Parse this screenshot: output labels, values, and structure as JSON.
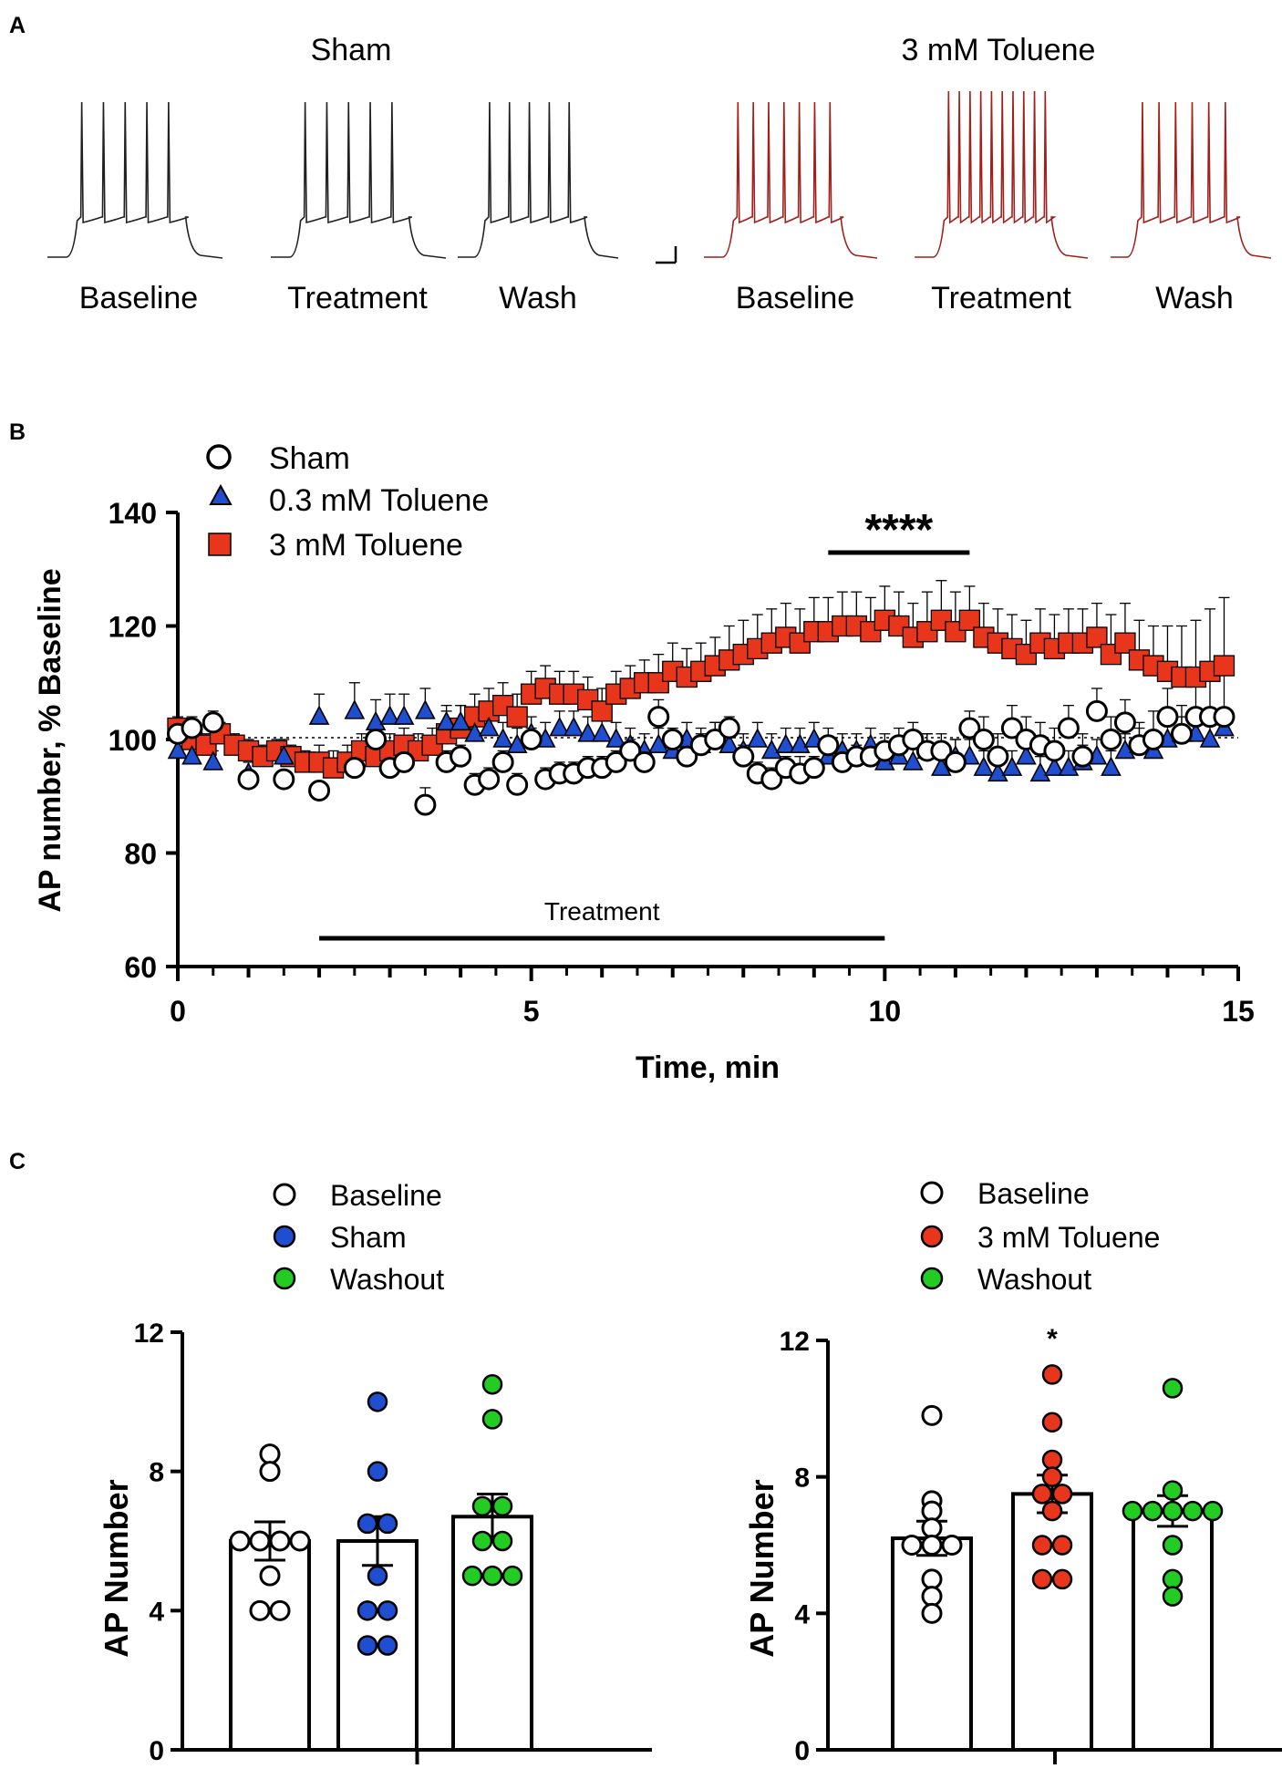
{
  "figure": {
    "panel_labels": [
      "A",
      "B",
      "C"
    ]
  },
  "colors": {
    "sham_trace": "#202020",
    "toluene_trace": "#a0201c",
    "red_marker": "#e8361c",
    "blue_marker": "#1f4fd0",
    "green_marker": "#22cc22",
    "white_marker": "#ffffff"
  },
  "panel_a": {
    "groups": [
      {
        "title": "Sham",
        "traces": [
          "Baseline",
          "Treatment",
          "Wash"
        ],
        "spikes": [
          5,
          5,
          5
        ]
      },
      {
        "title": "3 mM Toluene",
        "traces": [
          "Baseline",
          "Treatment",
          "Wash"
        ],
        "spikes": [
          7,
          10,
          6
        ]
      }
    ]
  },
  "chart_data": [
    {
      "id": "panel_b",
      "type": "scatter",
      "title": "",
      "xlabel": "Time, min",
      "ylabel": "AP number, % Baseline",
      "xlim": [
        0,
        15
      ],
      "ylim": [
        60,
        140
      ],
      "xticks": [
        0,
        5,
        10,
        15
      ],
      "yticks": [
        60,
        80,
        100,
        120,
        140
      ],
      "legend": [
        "Sham",
        "0.3 mM Toluene",
        "3 mM Toluene"
      ],
      "legend_position": "top-left",
      "significance": {
        "label": "****",
        "x_range": [
          9.2,
          11.2
        ]
      },
      "treatment_bar": {
        "label": "Treatment",
        "x_range": [
          2,
          10
        ]
      },
      "reference_line_y": 100,
      "series": [
        {
          "name": "Sham",
          "marker": "circle",
          "x": [
            0,
            0.2,
            0.5,
            1.0,
            1.5,
            2.0,
            2.5,
            2.8,
            3.0,
            3.2,
            3.5,
            3.8,
            4.0,
            4.2,
            4.4,
            4.6,
            4.8,
            5.0,
            5.2,
            5.4,
            5.6,
            5.8,
            6.0,
            6.2,
            6.4,
            6.6,
            6.8,
            7.0,
            7.2,
            7.4,
            7.6,
            7.8,
            8.0,
            8.2,
            8.4,
            8.6,
            8.8,
            9.0,
            9.2,
            9.4,
            9.6,
            9.8,
            10.0,
            10.2,
            10.4,
            10.6,
            10.8,
            11.0,
            11.2,
            11.4,
            11.6,
            11.8,
            12.0,
            12.2,
            12.4,
            12.6,
            12.8,
            13.0,
            13.2,
            13.4,
            13.6,
            13.8,
            14.0,
            14.2,
            14.4,
            14.6,
            14.8
          ],
          "y": [
            101,
            102,
            103,
            93,
            93,
            91,
            95,
            100,
            95,
            96,
            88.5,
            96,
            97,
            92,
            93,
            96,
            92,
            100,
            93,
            94,
            94,
            95,
            95,
            96,
            98,
            96,
            104,
            100,
            97,
            99,
            100,
            102,
            97,
            94,
            93,
            95,
            94,
            95,
            99,
            96,
            97,
            97,
            98,
            99,
            100,
            98,
            98,
            96,
            102,
            100,
            97,
            102,
            100,
            99,
            98,
            102,
            97,
            105,
            100,
            103,
            99,
            100,
            104,
            101,
            104,
            104,
            104
          ],
          "err": [
            1,
            2,
            2,
            1,
            1,
            1,
            2,
            2,
            2,
            2,
            3,
            2,
            2,
            2,
            2,
            2,
            2,
            2,
            2,
            2,
            2,
            2,
            2,
            2,
            2,
            2,
            3,
            2,
            2,
            2,
            3,
            2,
            2,
            2,
            2,
            2,
            3,
            2,
            3,
            2,
            2,
            2,
            3,
            3,
            3,
            3,
            3,
            4,
            3,
            4,
            4,
            4,
            4,
            4,
            4,
            4,
            4,
            4,
            4,
            4,
            4,
            5,
            5,
            5,
            6,
            7,
            8
          ]
        },
        {
          "name": "0.3 mM Toluene",
          "marker": "triangle",
          "x": [
            0,
            0.2,
            0.5,
            1.0,
            1.5,
            2.0,
            2.5,
            2.8,
            3.0,
            3.2,
            3.5,
            3.8,
            4.0,
            4.2,
            4.4,
            4.6,
            4.8,
            5.0,
            5.2,
            5.4,
            5.6,
            5.8,
            6.0,
            6.2,
            6.4,
            6.6,
            6.8,
            7.0,
            7.2,
            7.4,
            7.6,
            7.8,
            8.0,
            8.2,
            8.4,
            8.6,
            8.8,
            9.0,
            9.2,
            9.4,
            9.6,
            9.8,
            10.0,
            10.2,
            10.4,
            10.6,
            10.8,
            11.0,
            11.2,
            11.4,
            11.6,
            11.8,
            12.0,
            12.2,
            12.4,
            12.6,
            12.8,
            13.0,
            13.2,
            13.4,
            13.6,
            13.8,
            14.0,
            14.2,
            14.4,
            14.6,
            14.8
          ],
          "y": [
            98,
            97,
            96,
            94,
            97,
            104,
            105,
            103,
            104,
            104,
            105,
            103,
            103,
            101,
            102,
            100,
            99,
            101,
            100,
            102,
            102,
            101,
            101,
            100,
            99,
            98,
            99,
            98,
            100,
            99,
            100,
            99,
            98,
            100,
            98,
            99,
            99,
            100,
            97,
            98,
            98,
            99,
            96,
            97,
            96,
            98,
            95,
            97,
            97,
            95,
            94,
            95,
            97,
            94,
            95,
            95,
            96,
            97,
            95,
            98,
            99,
            98,
            100,
            101,
            101,
            100,
            102
          ],
          "err": [
            2,
            2,
            2,
            2,
            3,
            4,
            5,
            4,
            4,
            4,
            4,
            3,
            3,
            3,
            3,
            3,
            3,
            3,
            3,
            3,
            3,
            3,
            3,
            3,
            3,
            3,
            3,
            3,
            3,
            3,
            3,
            3,
            3,
            3,
            3,
            3,
            3,
            3,
            3,
            3,
            3,
            3,
            3,
            3,
            3,
            3,
            3,
            3,
            3,
            3,
            3,
            3,
            3,
            3,
            3,
            3,
            3,
            3,
            3,
            3,
            3,
            3,
            3,
            3,
            3,
            3,
            3
          ]
        },
        {
          "name": "3 mM Toluene",
          "marker": "square",
          "x": [
            0,
            0.2,
            0.4,
            0.6,
            0.8,
            1.0,
            1.2,
            1.4,
            1.6,
            1.8,
            2.0,
            2.2,
            2.4,
            2.6,
            2.8,
            3.0,
            3.2,
            3.4,
            3.6,
            3.8,
            4.0,
            4.2,
            4.4,
            4.6,
            4.8,
            5.0,
            5.2,
            5.4,
            5.6,
            5.8,
            6.0,
            6.2,
            6.4,
            6.6,
            6.8,
            7.0,
            7.2,
            7.4,
            7.6,
            7.8,
            8.0,
            8.2,
            8.4,
            8.6,
            8.8,
            9.0,
            9.2,
            9.4,
            9.6,
            9.8,
            10.0,
            10.2,
            10.4,
            10.6,
            10.8,
            11.0,
            11.2,
            11.4,
            11.6,
            11.8,
            12.0,
            12.2,
            12.4,
            12.6,
            12.8,
            13.0,
            13.2,
            13.4,
            13.6,
            13.8,
            14.0,
            14.2,
            14.4,
            14.6,
            14.8
          ],
          "y": [
            102,
            100,
            99,
            101,
            99,
            98,
            97,
            98,
            97,
            96,
            96,
            95,
            96,
            98,
            97,
            98,
            99,
            98,
            99,
            101,
            102,
            104,
            105,
            106,
            104,
            108,
            109,
            108,
            108,
            107,
            105,
            108,
            109,
            110,
            110,
            112,
            111,
            112,
            113,
            114,
            115,
            116,
            117,
            118,
            117,
            119,
            119,
            120,
            120,
            119,
            121,
            120,
            118,
            119,
            121,
            119,
            121,
            118,
            117,
            116,
            115,
            117,
            116,
            117,
            117,
            118,
            115,
            117,
            114,
            113,
            112,
            111,
            111,
            112,
            113
          ],
          "err": [
            2,
            2,
            2,
            2,
            2,
            2,
            2,
            2,
            2,
            2,
            3,
            3,
            3,
            3,
            3,
            3,
            3,
            3,
            3,
            4,
            4,
            4,
            4,
            4,
            4,
            4,
            4,
            4,
            4,
            4,
            4,
            4,
            4,
            4,
            5,
            5,
            5,
            5,
            5,
            6,
            6,
            6,
            6,
            6,
            6,
            6,
            6,
            6,
            6,
            6,
            6,
            6,
            6,
            7,
            7,
            7,
            6,
            6,
            6,
            6,
            6,
            6,
            6,
            6,
            6,
            6,
            7,
            7,
            7,
            7,
            8,
            9,
            10,
            11,
            12
          ]
        }
      ]
    },
    {
      "id": "panel_c_left",
      "type": "bar",
      "ylabel": "AP Number",
      "ylim": [
        0,
        12
      ],
      "yticks": [
        0,
        4,
        8,
        12
      ],
      "legend": [
        "Baseline",
        "Sham",
        "Washout"
      ],
      "legend_position": "top",
      "categories": [
        "Baseline",
        "Sham",
        "Washout"
      ],
      "values": [
        6.0,
        6.0,
        6.7
      ],
      "sem": [
        0.55,
        0.7,
        0.65
      ],
      "points": [
        [
          8.5,
          8.0,
          6.0,
          6.0,
          6.0,
          6.0,
          5.0,
          4.0,
          4.0
        ],
        [
          10.0,
          8.0,
          6.5,
          6.5,
          5.0,
          4.0,
          4.0,
          3.0,
          3.0
        ],
        [
          10.5,
          9.5,
          7.0,
          7.0,
          6.0,
          6.0,
          5.0,
          5.0,
          5.0
        ]
      ],
      "fills": [
        "white",
        "blue",
        "green"
      ]
    },
    {
      "id": "panel_c_right",
      "type": "bar",
      "ylabel": "AP Number",
      "ylim": [
        0,
        12
      ],
      "yticks": [
        0,
        4,
        8,
        12
      ],
      "legend": [
        "Baseline",
        "3 mM Toluene",
        "Washout"
      ],
      "legend_position": "top",
      "categories": [
        "Baseline",
        "3 mM Toluene",
        "Washout"
      ],
      "values": [
        6.2,
        7.5,
        7.0
      ],
      "sem": [
        0.5,
        0.55,
        0.45
      ],
      "significance": {
        "label": "*",
        "category": 1
      },
      "points": [
        [
          9.8,
          7.3,
          7.0,
          6.5,
          6.0,
          6.0,
          6.0,
          5.0,
          4.5,
          4.0
        ],
        [
          11.0,
          9.6,
          8.5,
          8.0,
          7.5,
          7.5,
          7.0,
          6.0,
          6.0,
          5.0,
          5.0
        ],
        [
          10.6,
          7.6,
          7.0,
          7.0,
          7.0,
          7.0,
          7.0,
          6.0,
          5.0,
          4.5
        ]
      ],
      "fills": [
        "white",
        "red",
        "green"
      ]
    }
  ]
}
